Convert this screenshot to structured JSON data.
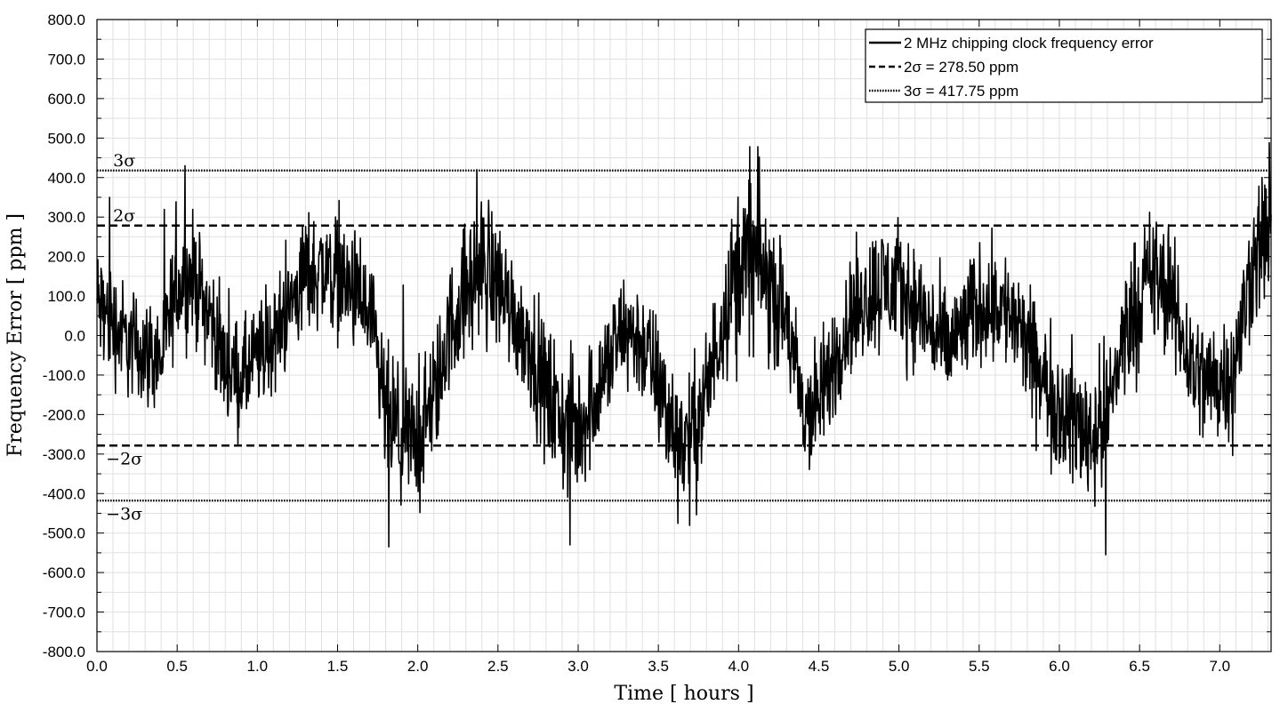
{
  "chart_data": {
    "type": "line",
    "title": "",
    "xlabel": "Time [ hours ]",
    "ylabel": "Frequency Error [ ppm ]",
    "xlim": [
      0.0,
      7.32
    ],
    "ylim": [
      -800.0,
      800.0
    ],
    "x_ticks": [
      "0.0",
      "0.5",
      "1.0",
      "1.5",
      "2.0",
      "2.5",
      "3.0",
      "3.5",
      "4.0",
      "4.5",
      "5.0",
      "5.5",
      "6.0",
      "6.5",
      "7.0"
    ],
    "x_tick_values": [
      0.0,
      0.5,
      1.0,
      1.5,
      2.0,
      2.5,
      3.0,
      3.5,
      4.0,
      4.5,
      5.0,
      5.5,
      6.0,
      6.5,
      7.0
    ],
    "y_ticks": [
      "800.0",
      "700.0",
      "600.0",
      "500.0",
      "400.0",
      "300.0",
      "200.0",
      "100.0",
      "0.0",
      "-100.0",
      "-200.0",
      "-300.0",
      "-400.0",
      "-500.0",
      "-600.0",
      "-700.0",
      "-800.0"
    ],
    "y_tick_values": [
      800,
      700,
      600,
      500,
      400,
      300,
      200,
      100,
      0,
      -100,
      -200,
      -300,
      -400,
      -500,
      -600,
      -700,
      -800
    ],
    "grid": true,
    "legend_position": "top-right",
    "series": [
      {
        "name": "2 MHz chipping clock frequency error",
        "style": "solid",
        "color": "#000000",
        "envelope": {
          "x": [
            0.0,
            0.1,
            0.2,
            0.3,
            0.4,
            0.5,
            0.6,
            0.7,
            0.8,
            0.9,
            1.0,
            1.1,
            1.2,
            1.3,
            1.4,
            1.5,
            1.6,
            1.7,
            1.8,
            1.9,
            2.0,
            2.1,
            2.2,
            2.3,
            2.4,
            2.5,
            2.6,
            2.7,
            2.8,
            2.9,
            3.0,
            3.1,
            3.2,
            3.3,
            3.4,
            3.5,
            3.6,
            3.7,
            3.8,
            3.9,
            4.0,
            4.1,
            4.2,
            4.3,
            4.4,
            4.5,
            4.6,
            4.7,
            4.8,
            4.9,
            5.0,
            5.1,
            5.2,
            5.3,
            5.4,
            5.5,
            5.6,
            5.7,
            5.8,
            5.9,
            6.0,
            6.1,
            6.2,
            6.3,
            6.4,
            6.5,
            6.6,
            6.7,
            6.8,
            6.9,
            7.0,
            7.1,
            7.2,
            7.3
          ],
          "y": [
            80,
            30,
            -20,
            -40,
            -60,
            130,
            150,
            60,
            -80,
            -110,
            -60,
            -10,
            70,
            160,
            170,
            150,
            110,
            40,
            -200,
            -270,
            -260,
            -170,
            20,
            110,
            170,
            140,
            50,
            -20,
            -150,
            -220,
            -240,
            -150,
            -60,
            20,
            -20,
            -120,
            -250,
            -270,
            -150,
            50,
            180,
            190,
            120,
            40,
            -200,
            -180,
            -60,
            50,
            100,
            130,
            120,
            80,
            20,
            -40,
            20,
            80,
            90,
            50,
            -30,
            -120,
            -180,
            -220,
            -250,
            -200,
            0,
            100,
            150,
            90,
            -50,
            -120,
            -110,
            -70,
            180,
            270
          ],
          "amplitude": [
            110,
            110,
            100,
            100,
            100,
            110,
            110,
            100,
            100,
            100,
            100,
            100,
            100,
            110,
            110,
            110,
            110,
            110,
            130,
            130,
            130,
            120,
            110,
            130,
            140,
            130,
            110,
            110,
            130,
            130,
            130,
            120,
            110,
            110,
            110,
            120,
            130,
            130,
            120,
            120,
            150,
            160,
            130,
            110,
            130,
            120,
            110,
            110,
            120,
            120,
            120,
            110,
            110,
            110,
            110,
            110,
            110,
            110,
            110,
            120,
            120,
            130,
            130,
            130,
            120,
            130,
            130,
            110,
            120,
            120,
            120,
            120,
            120,
            140
          ]
        },
        "extremes": [
          {
            "x": 0.08,
            "y": 350
          },
          {
            "x": 0.55,
            "y": 430
          },
          {
            "x": 1.82,
            "y": -535
          },
          {
            "x": 2.37,
            "y": 420
          },
          {
            "x": 2.95,
            "y": -530
          },
          {
            "x": 4.07,
            "y": 478
          },
          {
            "x": 4.12,
            "y": 478
          },
          {
            "x": 6.29,
            "y": -555
          },
          {
            "x": 7.31,
            "y": 488
          }
        ]
      },
      {
        "name": "2σ = 278.50 ppm",
        "style": "dashed",
        "color": "#000000",
        "levels": [
          278.5,
          -278.5
        ]
      },
      {
        "name": "3σ = 417.75 ppm",
        "style": "dotted",
        "color": "#000000",
        "levels": [
          417.75,
          -417.75
        ]
      }
    ],
    "annotations": [
      {
        "text": "3σ",
        "x": 0.17,
        "y": 445
      },
      {
        "text": "2σ",
        "x": 0.17,
        "y": 305
      },
      {
        "text": "−2σ",
        "x": 0.17,
        "y": -310
      },
      {
        "text": "−3σ",
        "x": 0.17,
        "y": -450
      }
    ]
  }
}
